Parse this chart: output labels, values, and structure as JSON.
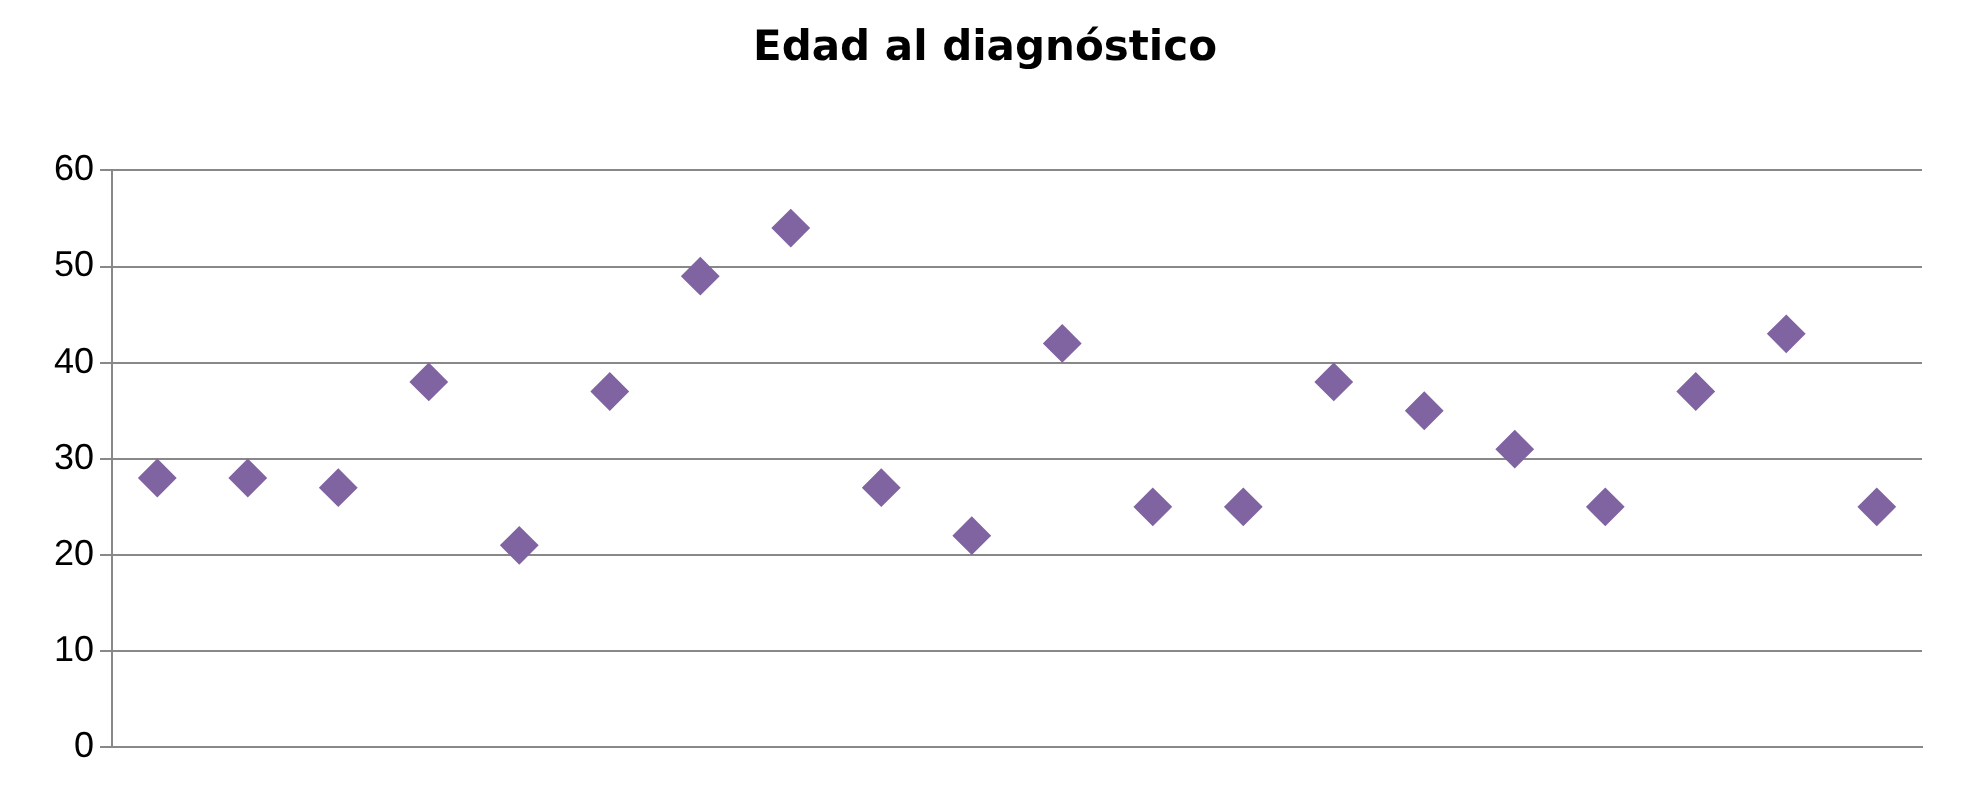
{
  "chart_data": {
    "type": "scatter",
    "title": "Edad al diagnóstico",
    "categories": [
      null,
      null,
      null,
      null,
      null,
      null,
      null,
      null,
      null,
      null,
      null,
      null,
      null,
      null,
      null,
      null,
      null,
      null,
      null,
      null
    ],
    "values": [
      28,
      28,
      27,
      38,
      21,
      37,
      49,
      54,
      27,
      22,
      42,
      25,
      25,
      38,
      35,
      31,
      25,
      37,
      43,
      25
    ],
    "color": "#8064a2",
    "marker": "diamond",
    "ylim": [
      0,
      60
    ],
    "yticks": [
      0,
      10,
      20,
      30,
      40,
      50,
      60
    ],
    "grid": "y",
    "legend": false
  }
}
